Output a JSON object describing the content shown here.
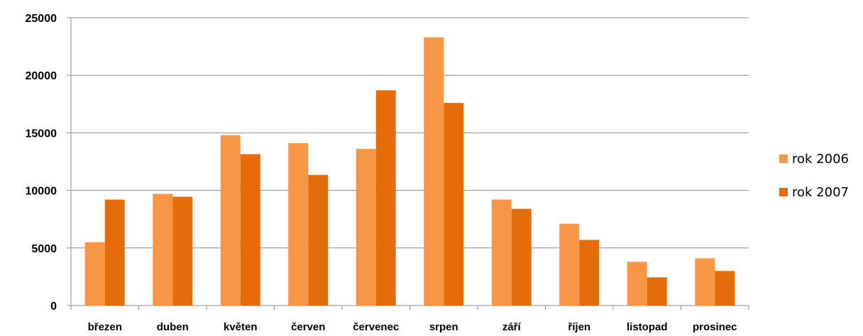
{
  "chart_data": {
    "type": "bar",
    "categories": [
      "březen",
      "duben",
      "květen",
      "červen",
      "červenec",
      "srpen",
      "září",
      "říjen",
      "listopad",
      "prosinec"
    ],
    "series": [
      {
        "name": "rok 2006",
        "color": "#f79646",
        "values": [
          5500,
          9700,
          14800,
          14100,
          13600,
          23300,
          9200,
          7100,
          3800,
          4100
        ]
      },
      {
        "name": "rok 2007",
        "color": "#e46c0a",
        "values": [
          9200,
          9450,
          13150,
          11350,
          18700,
          17600,
          8400,
          5700,
          2450,
          3000
        ]
      }
    ],
    "yticks": [
      "0",
      "5000",
      "10000",
      "15000",
      "20000",
      "25000"
    ],
    "ylim": [
      0,
      25000
    ],
    "grid": true,
    "legend": "right",
    "title": "",
    "xlabel": "",
    "ylabel": ""
  }
}
